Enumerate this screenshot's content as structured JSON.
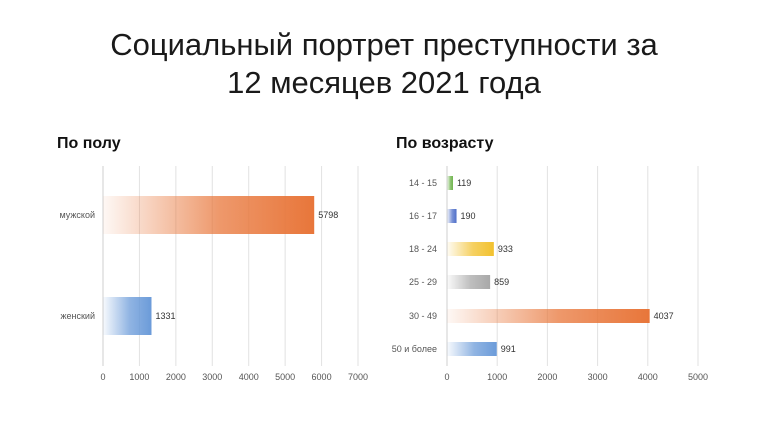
{
  "title_line1": "Социальный портрет преступности за",
  "title_line2": "12 месяцев 2021 года",
  "chart_data": [
    {
      "type": "bar",
      "orientation": "horizontal",
      "title": "По полу",
      "categories": [
        "мужской",
        "женский"
      ],
      "values": [
        5798,
        1331
      ],
      "colors": [
        "#e8763a",
        "#6b9bd9"
      ],
      "xlim": [
        0,
        7000
      ],
      "xticks": [
        0,
        1000,
        2000,
        3000,
        4000,
        5000,
        6000,
        7000
      ],
      "grid": true,
      "legend": "none"
    },
    {
      "type": "bar",
      "orientation": "horizontal",
      "title": "По возрасту",
      "categories": [
        "14 - 15",
        "16 - 17",
        "18 - 24",
        "25 - 29",
        "30 - 49",
        "50 и более"
      ],
      "values": [
        119,
        190,
        933,
        859,
        4037,
        991
      ],
      "colors": [
        "#6db34a",
        "#4f6fc9",
        "#f2c12e",
        "#a8a8a8",
        "#e8763a",
        "#6b9bd9"
      ],
      "xlim": [
        0,
        5000
      ],
      "xticks": [
        0,
        1000,
        2000,
        3000,
        4000,
        5000
      ],
      "grid": true,
      "legend": "none"
    }
  ]
}
